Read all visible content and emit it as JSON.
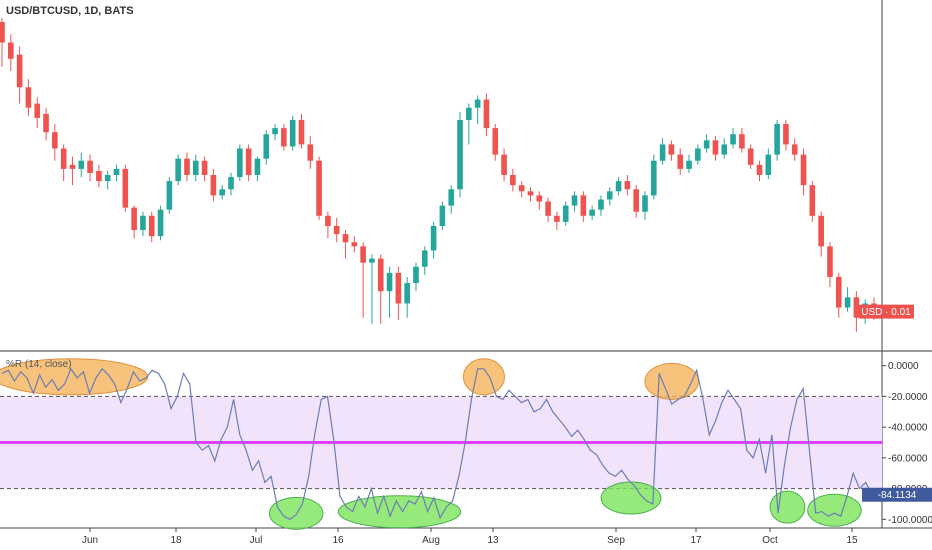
{
  "header": {
    "title": "USD/BTCUSD, 1D, BATS"
  },
  "indicator": {
    "label": "%R (14, close)"
  },
  "colors": {
    "up": "#26a69a",
    "down": "#ef5350",
    "wr_line": "#6c7db5",
    "midline": "#e040fb",
    "band_fill": "#f1e3fc",
    "oversold_highlight": "#7ce35a",
    "overbought_highlight": "#f5b35b"
  },
  "chart_data": [
    {
      "type": "candlestick",
      "title": "USD/BTCUSD, 1D, BATS",
      "price_label": "USD · 0.01",
      "x_ticks": [
        "Jun",
        "18",
        "Jul",
        "16",
        "Aug",
        "13",
        "Sep",
        "17",
        "Oct",
        "15"
      ],
      "y_range_units": "relative",
      "candles": [
        [
          90,
          80,
          68,
          92
        ],
        [
          80,
          72,
          66,
          84
        ],
        [
          74,
          58,
          50,
          78
        ],
        [
          58,
          48,
          44,
          62
        ],
        [
          50,
          43,
          38,
          53
        ],
        [
          45,
          36,
          32,
          48
        ],
        [
          36,
          28,
          22,
          40
        ],
        [
          28,
          18,
          12,
          30
        ],
        [
          20,
          18,
          10,
          24
        ],
        [
          18,
          22,
          14,
          26
        ],
        [
          22,
          16,
          12,
          25
        ],
        [
          17,
          12,
          9,
          20
        ],
        [
          12,
          15,
          8,
          17
        ],
        [
          15,
          18,
          12,
          20
        ],
        [
          18,
          -1,
          -3,
          20
        ],
        [
          -1,
          -12,
          -16,
          0
        ],
        [
          -12,
          -5,
          -15,
          -3
        ],
        [
          -5,
          -15,
          -18,
          -3
        ],
        [
          -15,
          -2,
          -17,
          0
        ],
        [
          -2,
          12,
          -4,
          14
        ],
        [
          12,
          23,
          10,
          25
        ],
        [
          23,
          15,
          12,
          26
        ],
        [
          15,
          22,
          12,
          25
        ],
        [
          22,
          15,
          12,
          24
        ],
        [
          15,
          5,
          2,
          18
        ],
        [
          5,
          8,
          3,
          10
        ],
        [
          8,
          14,
          5,
          16
        ],
        [
          14,
          28,
          12,
          30
        ],
        [
          28,
          15,
          12,
          30
        ],
        [
          15,
          23,
          12,
          24
        ],
        [
          23,
          35,
          20,
          37
        ],
        [
          35,
          38,
          32,
          40
        ],
        [
          38,
          29,
          27,
          40
        ],
        [
          29,
          42,
          27,
          44
        ],
        [
          42,
          30,
          28,
          45
        ],
        [
          30,
          22,
          18,
          34
        ],
        [
          22,
          -5,
          -7,
          24
        ],
        [
          -5,
          -10,
          -16,
          -3
        ],
        [
          -10,
          -14,
          -18,
          -6
        ],
        [
          -14,
          -18,
          -26,
          -12
        ],
        [
          -18,
          -20,
          -23,
          -15
        ],
        [
          -20,
          -28,
          -55,
          -18
        ],
        [
          -28,
          -26,
          -58,
          -24
        ],
        [
          -26,
          -42,
          -58,
          -24
        ],
        [
          -42,
          -33,
          -55,
          -30
        ],
        [
          -33,
          -48,
          -56,
          -30
        ],
        [
          -48,
          -38,
          -55,
          -35
        ],
        [
          -38,
          -30,
          -42,
          -28
        ],
        [
          -30,
          -22,
          -34,
          -20
        ],
        [
          -22,
          -10,
          -26,
          -8
        ],
        [
          -10,
          0,
          -12,
          2
        ],
        [
          0,
          8,
          -4,
          10
        ],
        [
          8,
          42,
          4,
          46
        ],
        [
          42,
          48,
          30,
          50
        ],
        [
          48,
          52,
          40,
          54
        ],
        [
          52,
          38,
          34,
          55
        ],
        [
          38,
          25,
          22,
          40
        ],
        [
          25,
          15,
          12,
          28
        ],
        [
          15,
          10,
          7,
          18
        ],
        [
          10,
          7,
          4,
          12
        ],
        [
          7,
          5,
          2,
          9
        ],
        [
          5,
          2,
          -2,
          7
        ],
        [
          2,
          -5,
          -8,
          4
        ],
        [
          -5,
          -8,
          -12,
          -3
        ],
        [
          -8,
          0,
          -10,
          2
        ],
        [
          0,
          5,
          -3,
          7
        ],
        [
          5,
          -5,
          -8,
          7
        ],
        [
          -5,
          -2,
          -7,
          0
        ],
        [
          -2,
          3,
          -5,
          5
        ],
        [
          3,
          7,
          0,
          9
        ],
        [
          7,
          12,
          5,
          14
        ],
        [
          12,
          8,
          5,
          15
        ],
        [
          8,
          -3,
          -6,
          10
        ],
        [
          -3,
          5,
          -7,
          7
        ],
        [
          5,
          22,
          3,
          25
        ],
        [
          22,
          30,
          20,
          33
        ],
        [
          30,
          25,
          22,
          32
        ],
        [
          25,
          18,
          15,
          28
        ],
        [
          18,
          22,
          16,
          25
        ],
        [
          22,
          28,
          20,
          30
        ],
        [
          28,
          32,
          26,
          35
        ],
        [
          32,
          25,
          22,
          34
        ],
        [
          25,
          30,
          23,
          33
        ],
        [
          30,
          35,
          28,
          38
        ],
        [
          35,
          28,
          26,
          38
        ],
        [
          28,
          20,
          18,
          30
        ],
        [
          20,
          15,
          12,
          22
        ],
        [
          15,
          25,
          13,
          28
        ],
        [
          25,
          40,
          22,
          42
        ],
        [
          40,
          30,
          27,
          42
        ],
        [
          30,
          25,
          22,
          33
        ],
        [
          25,
          10,
          5,
          28
        ],
        [
          10,
          -5,
          -8,
          12
        ],
        [
          -5,
          -20,
          -25,
          -3
        ],
        [
          -20,
          -35,
          -40,
          -18
        ],
        [
          -35,
          -50,
          -55,
          -33
        ],
        [
          -50,
          -45,
          -52,
          -40
        ],
        [
          -45,
          -55,
          -62,
          -42
        ],
        [
          -55,
          -48,
          -58,
          -46
        ],
        [
          -48,
          -52,
          -56,
          -45
        ]
      ]
    },
    {
      "type": "line",
      "title": "%R (14, close)",
      "ylim": [
        -105,
        5
      ],
      "yticks": [
        "0.0000",
        "-20.0000",
        "-40.0000",
        "-60.0000",
        "-80.0000",
        "-100.0000"
      ],
      "bands": [
        -20,
        -80
      ],
      "midline": -50,
      "last_value_label": "-84.1134",
      "series": [
        {
          "values": [
            -5,
            -3,
            -10,
            -4,
            -8,
            -18,
            -6,
            -14,
            -9,
            -16,
            -12,
            -2,
            -8,
            -4,
            -18,
            -8,
            -2,
            -6,
            -12,
            -24,
            -15,
            -4,
            -10,
            -8,
            -3,
            -5,
            -12,
            -28,
            -20,
            -5,
            -12,
            -50,
            -55,
            -52,
            -62,
            -48,
            -40,
            -22,
            -45,
            -55,
            -68,
            -62,
            -76,
            -72,
            -92,
            -98,
            -100,
            -97,
            -90,
            -72,
            -44,
            -22,
            -20,
            -48,
            -85,
            -92,
            -95,
            -85,
            -92,
            -80,
            -96,
            -85,
            -98,
            -88,
            -95,
            -88,
            -90,
            -82,
            -95,
            -86,
            -99,
            -92,
            -88,
            -72,
            -50,
            -22,
            -2,
            -2,
            -8,
            -20,
            -22,
            -16,
            -20,
            -24,
            -22,
            -30,
            -28,
            -22,
            -30,
            -35,
            -40,
            -46,
            -42,
            -48,
            -55,
            -58,
            -65,
            -70,
            -72,
            -68,
            -74,
            -78,
            -84,
            -88,
            -90,
            -5,
            -15,
            -25,
            -22,
            -20,
            -12,
            -3,
            -22,
            -45,
            -36,
            -24,
            -16,
            -22,
            -28,
            -55,
            -60,
            -48,
            -70,
            -45,
            -96,
            -65,
            -40,
            -22,
            -15,
            -55,
            -96,
            -95,
            -98,
            -96,
            -98,
            -85,
            -70,
            -80,
            -76,
            -84
          ]
        }
      ]
    }
  ]
}
